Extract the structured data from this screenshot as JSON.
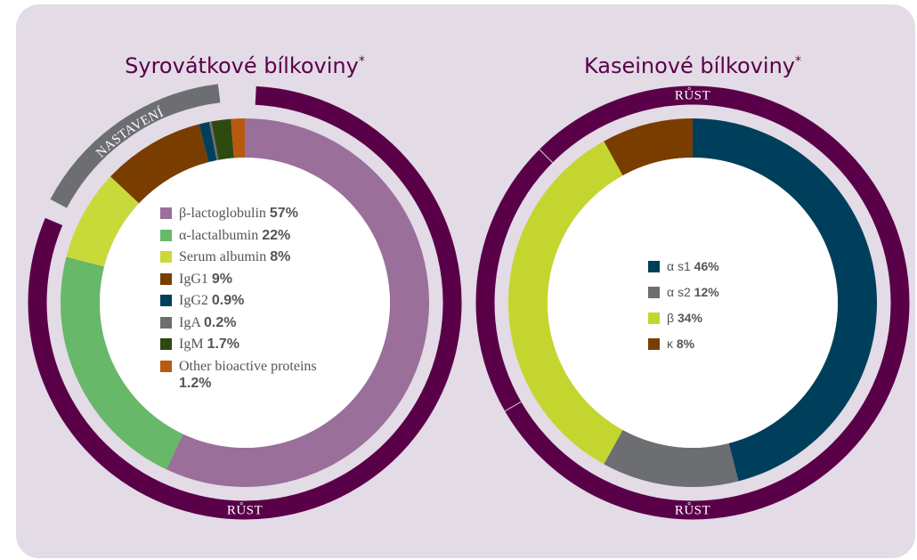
{
  "chart_data": [
    {
      "type": "pie",
      "donut": true,
      "title": "Syrovátkové bílkoviny",
      "title_mark": "*",
      "categories": [
        "β-lactoglobulin",
        "α-lactalbumin",
        "Serum albumin",
        "IgG1",
        "IgG2",
        "IgA",
        "IgM",
        "Other bioactive proteins"
      ],
      "values": [
        57,
        22,
        8,
        9,
        0.9,
        0.2,
        1.7,
        1.2
      ],
      "value_labels": [
        "57%",
        "22%",
        "8%",
        "9%",
        "0.9%",
        "0.2%",
        "1.7%",
        "1.2%"
      ],
      "colors": [
        "#9a6f9a",
        "#67b868",
        "#c8da3a",
        "#7a3d00",
        "#003f5c",
        "#6d6e71",
        "#2f4a10",
        "#b85a10"
      ],
      "ring_labels": [
        "NASTAVENÍ",
        "RŮST"
      ]
    },
    {
      "type": "pie",
      "donut": true,
      "title": "Kaseinové bílkoviny",
      "title_mark": "*",
      "categories": [
        "α s1",
        "α s2",
        "β",
        "κ"
      ],
      "values": [
        46,
        12,
        34,
        8
      ],
      "value_labels": [
        "46%",
        "12%",
        "34%",
        "8%"
      ],
      "colors": [
        "#003f5c",
        "#6d6e71",
        "#c4d52f",
        "#7a3d00"
      ],
      "ring_labels": [
        "RŮST",
        "RŮST"
      ]
    }
  ]
}
